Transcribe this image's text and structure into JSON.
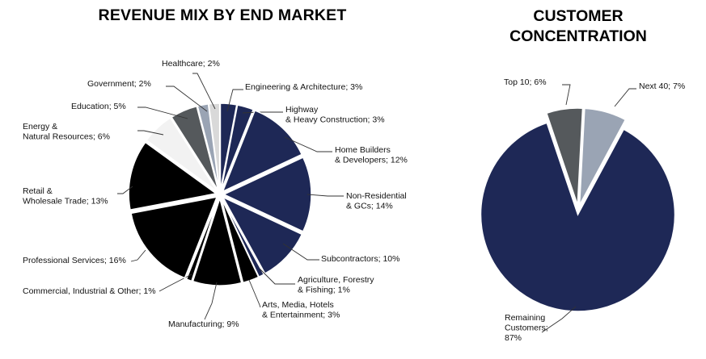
{
  "chart_data": [
    {
      "type": "pie",
      "title": "REVENUE MIX BY END MARKET",
      "unit": "%",
      "slices": [
        {
          "label": [
            "Engineering & Architecture; 3%"
          ],
          "value": 3,
          "color": "#1e2856"
        },
        {
          "label": [
            "Highway",
            "& Heavy Construction; 3%"
          ],
          "value": 3,
          "color": "#1e2856"
        },
        {
          "label": [
            "Home Builders",
            "& Developers; 12%"
          ],
          "value": 12,
          "color": "#1e2856"
        },
        {
          "label": [
            "Non-Residential",
            "& GCs; 14%"
          ],
          "value": 14,
          "color": "#1e2856"
        },
        {
          "label": [
            "Subcontractors; 10%"
          ],
          "value": 10,
          "color": "#1e2856"
        },
        {
          "label": [
            "Agriculture, Forestry",
            "& Fishing; 1%"
          ],
          "value": 1,
          "color": "#1e2856"
        },
        {
          "label": [
            "Arts, Media, Hotels",
            "& Entertainment; 3%"
          ],
          "value": 3,
          "color": "#000000"
        },
        {
          "label": [
            "Manufacturing; 9%"
          ],
          "value": 9,
          "color": "#000000"
        },
        {
          "label": [
            "Commercial, Industrial & Other; 1%"
          ],
          "value": 1,
          "color": "#000000"
        },
        {
          "label": [
            "Professional Services; 16%"
          ],
          "value": 16,
          "color": "#000000"
        },
        {
          "label": [
            "Retail &",
            "Wholesale Trade; 13%"
          ],
          "value": 13,
          "color": "#000000"
        },
        {
          "label": [
            "Energy &",
            "Natural Resources; 6%"
          ],
          "value": 6,
          "color": "#f2f2f2"
        },
        {
          "label": [
            "Education; 5%"
          ],
          "value": 5,
          "color": "#55595c"
        },
        {
          "label": [
            "Government; 2%"
          ],
          "value": 2,
          "color": "#9aa4b4"
        },
        {
          "label": [
            "Healthcare; 2%"
          ],
          "value": 2,
          "color": "#d9d9d9"
        }
      ]
    },
    {
      "type": "pie",
      "title": "CUSTOMER CONCENTRATION",
      "unit": "%",
      "slices": [
        {
          "label": [
            "Next 40; 7%"
          ],
          "value": 7,
          "color": "#9aa4b4"
        },
        {
          "label": [
            "Remaining",
            "Customers;",
            "87%"
          ],
          "value": 87,
          "color": "#1e2856"
        },
        {
          "label": [
            "Top 10; 6%"
          ],
          "value": 6,
          "color": "#55595c"
        }
      ]
    }
  ]
}
